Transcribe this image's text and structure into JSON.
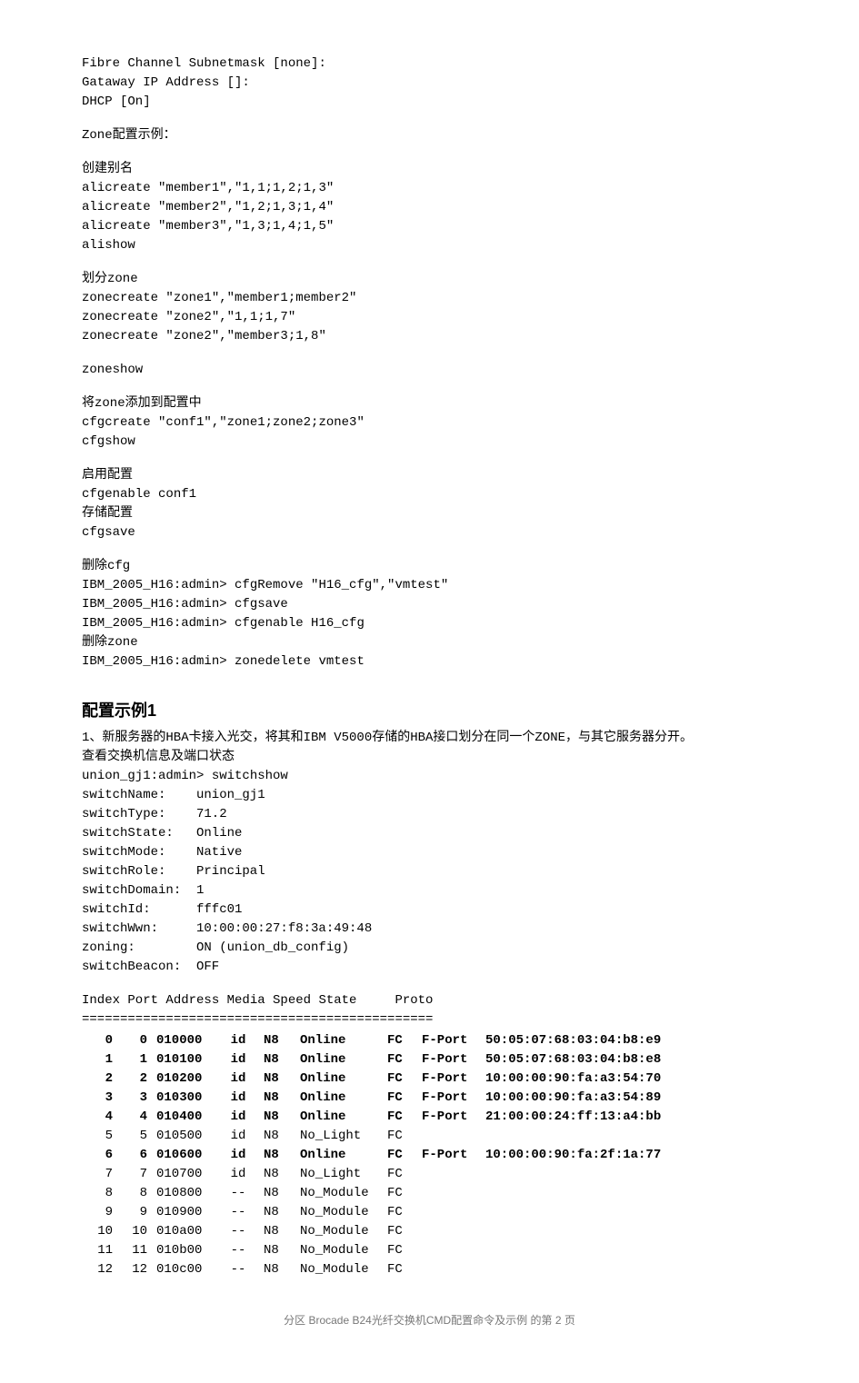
{
  "header_lines": [
    "Fibre Channel Subnetmask [none]:",
    "Gataway IP Address []:",
    "DHCP [On]"
  ],
  "zone_example_title": "Zone配置示例：",
  "alias": {
    "title": "创建别名",
    "lines": [
      "alicreate \"member1\",\"1,1;1,2;1,3\"",
      "alicreate \"member2\",\"1,2;1,3;1,4\"",
      "alicreate \"member3\",\"1,3;1,4;1,5\"",
      "alishow"
    ]
  },
  "zone": {
    "title": "划分zone",
    "lines": [
      "zonecreate \"zone1\",\"member1;member2\"",
      "zonecreate \"zone2\",\"1,1;1,7\"",
      "zonecreate \"zone2\",\"member3;1,8\""
    ],
    "zoneshow": "zoneshow"
  },
  "cfg": {
    "title": "将zone添加到配置中",
    "lines": [
      "cfgcreate \"conf1\",\"zone1;zone2;zone3\"",
      "cfgshow"
    ]
  },
  "enable": {
    "title": "启用配置",
    "line": "cfgenable conf1"
  },
  "save": {
    "title": "存储配置",
    "line": "cfgsave"
  },
  "delcfg": {
    "title": "删除cfg",
    "lines": [
      "IBM_2005_H16:admin> cfgRemove \"H16_cfg\",\"vmtest\"",
      "IBM_2005_H16:admin> cfgsave",
      "IBM_2005_H16:admin> cfgenable H16_cfg"
    ]
  },
  "delzone": {
    "title": "删除zone",
    "line": "IBM_2005_H16:admin> zonedelete vmtest"
  },
  "example1": {
    "heading": "配置示例1",
    "desc": "1、新服务器的HBA卡接入光交，将其和IBM V5000存储的HBA接口划分在同一个ZONE，与其它服务器分开。",
    "sub": "查看交换机信息及端口状态",
    "cmd": "union_gj1:admin> switchshow",
    "kv": [
      [
        "switchName:",
        "union_gj1"
      ],
      [
        "switchType:",
        "71.2"
      ],
      [
        "switchState:",
        "Online"
      ],
      [
        "switchMode:",
        "Native"
      ],
      [
        "switchRole:",
        "Principal"
      ],
      [
        "switchDomain:",
        "1"
      ],
      [
        "switchId:",
        "fffc01"
      ],
      [
        "switchWwn:",
        "10:00:00:27:f8:3a:49:48"
      ],
      [
        "zoning:",
        "ON (union_db_config)"
      ],
      [
        "switchBeacon:",
        "OFF"
      ]
    ],
    "port_header": "Index Port Address Media Speed State     Proto",
    "port_rule": "==============================================",
    "ports": [
      {
        "idx": "0",
        "port": "0",
        "addr": "010000",
        "media": "id",
        "speed": "N8",
        "state": "Online",
        "proto": "FC",
        "ptype": "F-Port",
        "wwn": "50:05:07:68:03:04:b8:e9",
        "bold": true
      },
      {
        "idx": "1",
        "port": "1",
        "addr": "010100",
        "media": "id",
        "speed": "N8",
        "state": "Online",
        "proto": "FC",
        "ptype": "F-Port",
        "wwn": "50:05:07:68:03:04:b8:e8",
        "bold": true
      },
      {
        "idx": "2",
        "port": "2",
        "addr": "010200",
        "media": "id",
        "speed": "N8",
        "state": "Online",
        "proto": "FC",
        "ptype": "F-Port",
        "wwn": "10:00:00:90:fa:a3:54:70",
        "bold": true
      },
      {
        "idx": "3",
        "port": "3",
        "addr": "010300",
        "media": "id",
        "speed": "N8",
        "state": "Online",
        "proto": "FC",
        "ptype": "F-Port",
        "wwn": "10:00:00:90:fa:a3:54:89",
        "bold": true
      },
      {
        "idx": "4",
        "port": "4",
        "addr": "010400",
        "media": "id",
        "speed": "N8",
        "state": "Online",
        "proto": "FC",
        "ptype": "F-Port",
        "wwn": "21:00:00:24:ff:13:a4:bb",
        "bold": true
      },
      {
        "idx": "5",
        "port": "5",
        "addr": "010500",
        "media": "id",
        "speed": "N8",
        "state": "No_Light",
        "proto": "FC",
        "ptype": "",
        "wwn": "",
        "bold": false
      },
      {
        "idx": "6",
        "port": "6",
        "addr": "010600",
        "media": "id",
        "speed": "N8",
        "state": "Online",
        "proto": "FC",
        "ptype": "F-Port",
        "wwn": "10:00:00:90:fa:2f:1a:77",
        "bold": true
      },
      {
        "idx": "7",
        "port": "7",
        "addr": "010700",
        "media": "id",
        "speed": "N8",
        "state": "No_Light",
        "proto": "FC",
        "ptype": "",
        "wwn": "",
        "bold": false
      },
      {
        "idx": "8",
        "port": "8",
        "addr": "010800",
        "media": "--",
        "speed": "N8",
        "state": "No_Module",
        "proto": "FC",
        "ptype": "",
        "wwn": "",
        "bold": false
      },
      {
        "idx": "9",
        "port": "9",
        "addr": "010900",
        "media": "--",
        "speed": "N8",
        "state": "No_Module",
        "proto": "FC",
        "ptype": "",
        "wwn": "",
        "bold": false
      },
      {
        "idx": "10",
        "port": "10",
        "addr": "010a00",
        "media": "--",
        "speed": "N8",
        "state": "No_Module",
        "proto": "FC",
        "ptype": "",
        "wwn": "",
        "bold": false
      },
      {
        "idx": "11",
        "port": "11",
        "addr": "010b00",
        "media": "--",
        "speed": "N8",
        "state": "No_Module",
        "proto": "FC",
        "ptype": "",
        "wwn": "",
        "bold": false
      },
      {
        "idx": "12",
        "port": "12",
        "addr": "010c00",
        "media": "--",
        "speed": "N8",
        "state": "No_Module",
        "proto": "FC",
        "ptype": "",
        "wwn": "",
        "bold": false
      }
    ]
  },
  "footer": "分区 Brocade B24光纤交换机CMD配置命令及示例 的第 2 页"
}
